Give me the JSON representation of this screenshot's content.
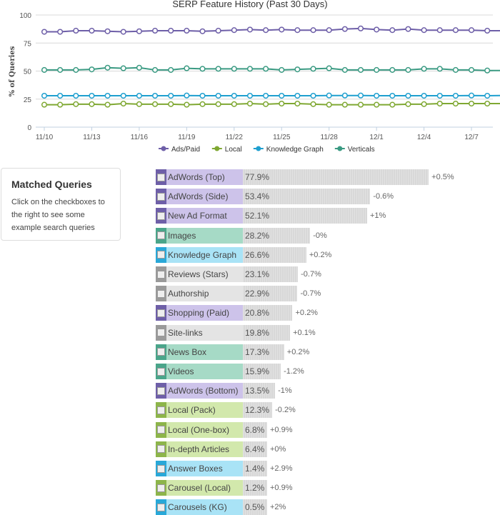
{
  "chart_data": [
    {
      "type": "line",
      "title": "SERP Feature History (Past 30 Days)",
      "ylabel": "% of Queries",
      "xlabel": "",
      "ylim": [
        0,
        100
      ],
      "yticks": [
        0,
        25,
        50,
        75,
        100
      ],
      "x": [
        "11/10",
        "11/11",
        "11/12",
        "11/13",
        "11/14",
        "11/15",
        "11/16",
        "11/17",
        "11/18",
        "11/19",
        "11/20",
        "11/21",
        "11/22",
        "11/23",
        "11/24",
        "11/25",
        "11/26",
        "11/27",
        "11/28",
        "11/29",
        "11/30",
        "12/1",
        "12/2",
        "12/3",
        "12/4",
        "12/5",
        "12/6",
        "12/7",
        "12/8",
        "12/9"
      ],
      "xticks": [
        "11/10",
        "11/13",
        "11/16",
        "11/19",
        "11/22",
        "11/25",
        "11/28",
        "12/1",
        "12/4",
        "12/7"
      ],
      "legend": "bottom",
      "grid": true,
      "series": [
        {
          "name": "Ads/Paid",
          "color": "#6e5fa8",
          "values": [
            85,
            85,
            86,
            86,
            85.5,
            85,
            85.5,
            86,
            86,
            86,
            85.5,
            86,
            86.5,
            87,
            86.5,
            87,
            86.5,
            86.5,
            86.5,
            87.5,
            88,
            87,
            86.5,
            87.5,
            86.5,
            86.5,
            86.5,
            86.5,
            86,
            86
          ]
        },
        {
          "name": "Local",
          "color": "#7fa832",
          "values": [
            20,
            20,
            20.5,
            20.5,
            20,
            21,
            20.5,
            20.5,
            20.5,
            20,
            20.5,
            20.5,
            20.5,
            21,
            20.5,
            21,
            21,
            20.5,
            20,
            20,
            20,
            20,
            20,
            20.5,
            20.5,
            21,
            21,
            21,
            21,
            21
          ]
        },
        {
          "name": "Knowledge Graph",
          "color": "#1e9fcf",
          "values": [
            28,
            28,
            28,
            28,
            28,
            28,
            28,
            28,
            28,
            28.2,
            28,
            28,
            28,
            28,
            28,
            28,
            28,
            28,
            28.2,
            28.2,
            28.2,
            28,
            28,
            28,
            28,
            28,
            28,
            28.2,
            28,
            28.2
          ]
        },
        {
          "name": "Verticals",
          "color": "#3a9a82",
          "values": [
            51,
            51,
            51,
            51.5,
            53,
            52.5,
            53,
            51,
            51,
            52.5,
            52,
            52,
            52,
            52,
            52,
            51,
            51.5,
            52,
            52.5,
            51,
            51,
            51,
            51,
            51,
            52,
            52,
            51,
            51,
            50.5,
            50.5
          ]
        }
      ]
    },
    {
      "type": "bar",
      "categories": [
        "AdWords (Top)",
        "AdWords (Side)",
        "New Ad Format",
        "Images",
        "Knowledge Graph",
        "Reviews (Stars)",
        "Authorship",
        "Shopping (Paid)",
        "Site-links",
        "News Box",
        "Videos",
        "AdWords (Bottom)",
        "Local (Pack)",
        "Local (One-box)",
        "In-depth Articles",
        "Answer Boxes",
        "Carousel (Local)",
        "Carousels (KG)"
      ],
      "values": [
        77.9,
        53.4,
        52.1,
        28.2,
        26.6,
        23.1,
        22.9,
        20.8,
        19.8,
        17.3,
        15.9,
        13.5,
        12.3,
        6.8,
        6.4,
        1.4,
        1.2,
        0.5
      ],
      "value_labels": [
        "77.9%",
        "53.4%",
        "52.1%",
        "28.2%",
        "26.6%",
        "23.1%",
        "22.9%",
        "20.8%",
        "19.8%",
        "17.3%",
        "15.9%",
        "13.5%",
        "12.3%",
        "6.8%",
        "6.4%",
        "1.4%",
        "1.2%",
        "0.5%"
      ],
      "changes": [
        "+0.5%",
        "-0.6%",
        "+1%",
        "-0%",
        "+0.2%",
        "-0.7%",
        "-0.7%",
        "+0.2%",
        "+0.1%",
        "+0.2%",
        "-1.2%",
        "-1%",
        "-0.2%",
        "+0.9%",
        "+0%",
        "+2.9%",
        "+0.9%",
        "+2%"
      ],
      "groups": [
        "ads",
        "ads",
        "ads",
        "vert",
        "kg",
        "other",
        "other",
        "ads",
        "other",
        "vert",
        "vert",
        "ads",
        "local",
        "local",
        "local",
        "kg",
        "local",
        "kg"
      ]
    }
  ],
  "group_colors": {
    "ads": {
      "dark": "#6e5fa8",
      "light": "#cdc3ea"
    },
    "vert": {
      "dark": "#4aa58a",
      "light": "#a6dac6"
    },
    "kg": {
      "dark": "#29a8d8",
      "light": "#a9e3f6"
    },
    "other": {
      "dark": "#9a9a9a",
      "light": "#e4e4e4"
    },
    "local": {
      "dark": "#8db54a",
      "light": "#d2e8ac"
    }
  },
  "panel": {
    "title": "Matched Queries",
    "text": "Click on the checkboxes to the right to see some example search queries"
  }
}
